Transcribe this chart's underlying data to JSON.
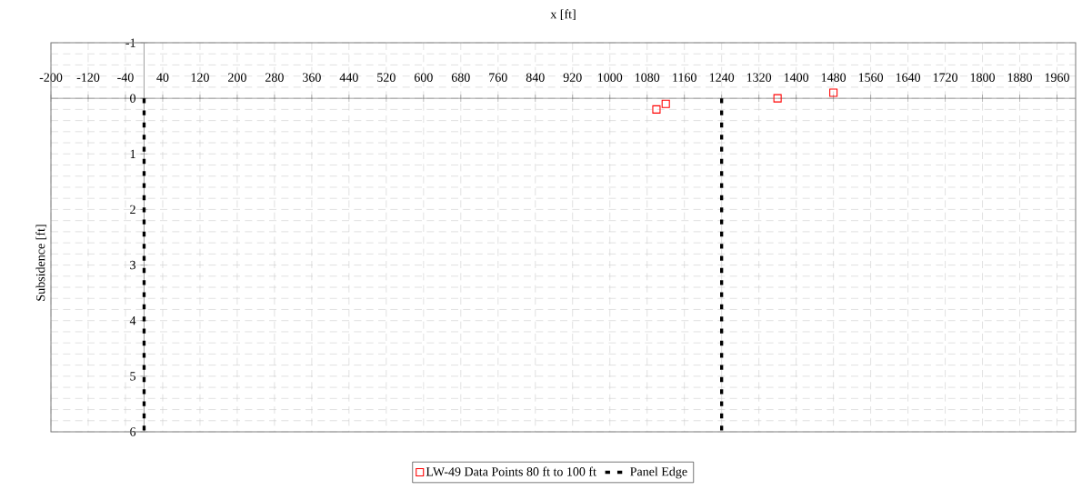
{
  "chart_data": {
    "type": "scatter",
    "xlabel": "x [ft]",
    "ylabel": "Subsidence [ft]",
    "xlim": [
      -200,
      2000
    ],
    "ylim": [
      6,
      -1
    ],
    "xticks": [
      -200,
      -120,
      -40,
      40,
      120,
      200,
      280,
      360,
      440,
      520,
      600,
      680,
      760,
      840,
      920,
      1000,
      1080,
      1160,
      1240,
      1320,
      1400,
      1480,
      1560,
      1640,
      1720,
      1800,
      1880,
      1960
    ],
    "yticks": [
      -1,
      0,
      1,
      2,
      3,
      4,
      5,
      6
    ],
    "grid": true,
    "legend": "bottom",
    "series": [
      {
        "name": "LW-49 Data Points 80 ft to 100 ft",
        "color": "#ff0000",
        "marker": "square",
        "x": [
          1100,
          1120,
          1360,
          1480
        ],
        "values": [
          0.2,
          0.1,
          0.0,
          -0.1
        ]
      },
      {
        "name": "Panel Edge",
        "type": "line",
        "color": "#000000",
        "marker": "none",
        "line_style": "dashed",
        "x": [
          0,
          0,
          null,
          1240,
          1240
        ],
        "values": [
          0,
          6,
          null,
          0,
          6
        ]
      }
    ]
  }
}
